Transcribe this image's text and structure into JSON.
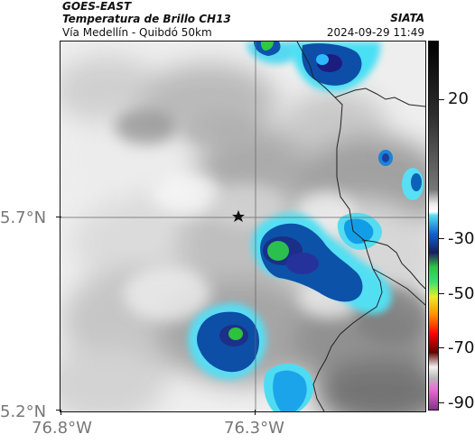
{
  "header": {
    "satellite": "GOES-EAST",
    "product": "Temperatura de Brillo CH13",
    "route": "Vía Medellín - Quibdó 50km",
    "organization": "SIATA",
    "timestamp": "2024-09-29 11:49"
  },
  "axes": {
    "latitude_ticks": [
      "5.7°N",
      "5.2°N"
    ],
    "longitude_ticks": [
      "76.8°W",
      "76.3°W"
    ]
  },
  "colorbar": {
    "labels": [
      "20",
      "-30",
      "-50",
      "-70",
      "-90"
    ]
  },
  "map": {
    "marker": "star-icon",
    "crosshair": true,
    "colors": {
      "light_cloud": "#f2f2f2",
      "gray_cloud": "#8a8a8a",
      "light_blue": "#3fd8ff",
      "deep_blue": "#0044aa",
      "green": "#2cc13c",
      "border": "#111111"
    }
  }
}
